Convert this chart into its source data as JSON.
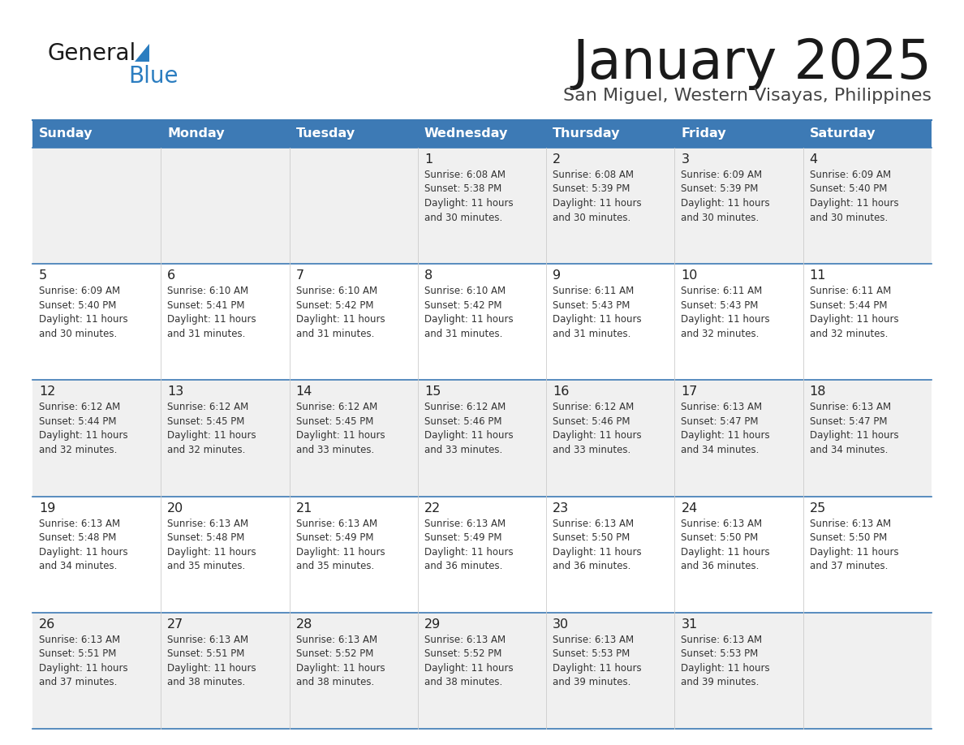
{
  "title": "January 2025",
  "subtitle": "San Miguel, Western Visayas, Philippines",
  "days_of_week": [
    "Sunday",
    "Monday",
    "Tuesday",
    "Wednesday",
    "Thursday",
    "Friday",
    "Saturday"
  ],
  "header_bg": "#3d7ab5",
  "header_text": "#ffffff",
  "row_bg_odd": "#f0f0f0",
  "row_bg_even": "#ffffff",
  "day_number_color": "#222222",
  "text_color": "#333333",
  "border_color": "#3d7ab5",
  "logo_general_color": "#1a1a1a",
  "logo_blue_color": "#2b7dc0",
  "calendar_data": [
    {
      "day": 1,
      "col": 3,
      "row": 0,
      "sunrise": "6:08 AM",
      "sunset": "5:38 PM",
      "daylight_hours": 11,
      "daylight_minutes": 30
    },
    {
      "day": 2,
      "col": 4,
      "row": 0,
      "sunrise": "6:08 AM",
      "sunset": "5:39 PM",
      "daylight_hours": 11,
      "daylight_minutes": 30
    },
    {
      "day": 3,
      "col": 5,
      "row": 0,
      "sunrise": "6:09 AM",
      "sunset": "5:39 PM",
      "daylight_hours": 11,
      "daylight_minutes": 30
    },
    {
      "day": 4,
      "col": 6,
      "row": 0,
      "sunrise": "6:09 AM",
      "sunset": "5:40 PM",
      "daylight_hours": 11,
      "daylight_minutes": 30
    },
    {
      "day": 5,
      "col": 0,
      "row": 1,
      "sunrise": "6:09 AM",
      "sunset": "5:40 PM",
      "daylight_hours": 11,
      "daylight_minutes": 30
    },
    {
      "day": 6,
      "col": 1,
      "row": 1,
      "sunrise": "6:10 AM",
      "sunset": "5:41 PM",
      "daylight_hours": 11,
      "daylight_minutes": 31
    },
    {
      "day": 7,
      "col": 2,
      "row": 1,
      "sunrise": "6:10 AM",
      "sunset": "5:42 PM",
      "daylight_hours": 11,
      "daylight_minutes": 31
    },
    {
      "day": 8,
      "col": 3,
      "row": 1,
      "sunrise": "6:10 AM",
      "sunset": "5:42 PM",
      "daylight_hours": 11,
      "daylight_minutes": 31
    },
    {
      "day": 9,
      "col": 4,
      "row": 1,
      "sunrise": "6:11 AM",
      "sunset": "5:43 PM",
      "daylight_hours": 11,
      "daylight_minutes": 31
    },
    {
      "day": 10,
      "col": 5,
      "row": 1,
      "sunrise": "6:11 AM",
      "sunset": "5:43 PM",
      "daylight_hours": 11,
      "daylight_minutes": 32
    },
    {
      "day": 11,
      "col": 6,
      "row": 1,
      "sunrise": "6:11 AM",
      "sunset": "5:44 PM",
      "daylight_hours": 11,
      "daylight_minutes": 32
    },
    {
      "day": 12,
      "col": 0,
      "row": 2,
      "sunrise": "6:12 AM",
      "sunset": "5:44 PM",
      "daylight_hours": 11,
      "daylight_minutes": 32
    },
    {
      "day": 13,
      "col": 1,
      "row": 2,
      "sunrise": "6:12 AM",
      "sunset": "5:45 PM",
      "daylight_hours": 11,
      "daylight_minutes": 32
    },
    {
      "day": 14,
      "col": 2,
      "row": 2,
      "sunrise": "6:12 AM",
      "sunset": "5:45 PM",
      "daylight_hours": 11,
      "daylight_minutes": 33
    },
    {
      "day": 15,
      "col": 3,
      "row": 2,
      "sunrise": "6:12 AM",
      "sunset": "5:46 PM",
      "daylight_hours": 11,
      "daylight_minutes": 33
    },
    {
      "day": 16,
      "col": 4,
      "row": 2,
      "sunrise": "6:12 AM",
      "sunset": "5:46 PM",
      "daylight_hours": 11,
      "daylight_minutes": 33
    },
    {
      "day": 17,
      "col": 5,
      "row": 2,
      "sunrise": "6:13 AM",
      "sunset": "5:47 PM",
      "daylight_hours": 11,
      "daylight_minutes": 34
    },
    {
      "day": 18,
      "col": 6,
      "row": 2,
      "sunrise": "6:13 AM",
      "sunset": "5:47 PM",
      "daylight_hours": 11,
      "daylight_minutes": 34
    },
    {
      "day": 19,
      "col": 0,
      "row": 3,
      "sunrise": "6:13 AM",
      "sunset": "5:48 PM",
      "daylight_hours": 11,
      "daylight_minutes": 34
    },
    {
      "day": 20,
      "col": 1,
      "row": 3,
      "sunrise": "6:13 AM",
      "sunset": "5:48 PM",
      "daylight_hours": 11,
      "daylight_minutes": 35
    },
    {
      "day": 21,
      "col": 2,
      "row": 3,
      "sunrise": "6:13 AM",
      "sunset": "5:49 PM",
      "daylight_hours": 11,
      "daylight_minutes": 35
    },
    {
      "day": 22,
      "col": 3,
      "row": 3,
      "sunrise": "6:13 AM",
      "sunset": "5:49 PM",
      "daylight_hours": 11,
      "daylight_minutes": 36
    },
    {
      "day": 23,
      "col": 4,
      "row": 3,
      "sunrise": "6:13 AM",
      "sunset": "5:50 PM",
      "daylight_hours": 11,
      "daylight_minutes": 36
    },
    {
      "day": 24,
      "col": 5,
      "row": 3,
      "sunrise": "6:13 AM",
      "sunset": "5:50 PM",
      "daylight_hours": 11,
      "daylight_minutes": 36
    },
    {
      "day": 25,
      "col": 6,
      "row": 3,
      "sunrise": "6:13 AM",
      "sunset": "5:50 PM",
      "daylight_hours": 11,
      "daylight_minutes": 37
    },
    {
      "day": 26,
      "col": 0,
      "row": 4,
      "sunrise": "6:13 AM",
      "sunset": "5:51 PM",
      "daylight_hours": 11,
      "daylight_minutes": 37
    },
    {
      "day": 27,
      "col": 1,
      "row": 4,
      "sunrise": "6:13 AM",
      "sunset": "5:51 PM",
      "daylight_hours": 11,
      "daylight_minutes": 38
    },
    {
      "day": 28,
      "col": 2,
      "row": 4,
      "sunrise": "6:13 AM",
      "sunset": "5:52 PM",
      "daylight_hours": 11,
      "daylight_minutes": 38
    },
    {
      "day": 29,
      "col": 3,
      "row": 4,
      "sunrise": "6:13 AM",
      "sunset": "5:52 PM",
      "daylight_hours": 11,
      "daylight_minutes": 38
    },
    {
      "day": 30,
      "col": 4,
      "row": 4,
      "sunrise": "6:13 AM",
      "sunset": "5:53 PM",
      "daylight_hours": 11,
      "daylight_minutes": 39
    },
    {
      "day": 31,
      "col": 5,
      "row": 4,
      "sunrise": "6:13 AM",
      "sunset": "5:53 PM",
      "daylight_hours": 11,
      "daylight_minutes": 39
    }
  ]
}
